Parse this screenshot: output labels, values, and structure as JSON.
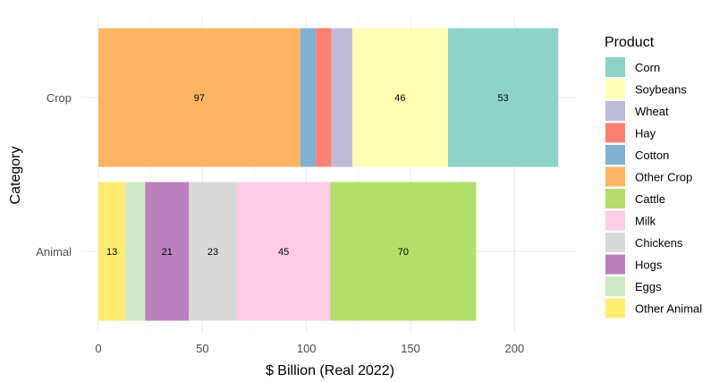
{
  "chart_data": {
    "type": "bar",
    "orientation": "horizontal",
    "stacked": true,
    "xlabel": "$ Billion (Real 2022)",
    "ylabel": "Category",
    "xlim": [
      0,
      220
    ],
    "xticks": [
      "0",
      "50",
      "100",
      "150",
      "200"
    ],
    "grid": true,
    "legend": {
      "title": "Product",
      "placement": "right"
    },
    "categories": [
      "Crop",
      "Animal"
    ],
    "series": [
      {
        "name": "Corn",
        "color": "#8dd3c7",
        "values": [
          53,
          null
        ]
      },
      {
        "name": "Soybeans",
        "color": "#ffffb3",
        "values": [
          46,
          null
        ]
      },
      {
        "name": "Wheat",
        "color": "#bebada",
        "values": [
          10,
          null
        ]
      },
      {
        "name": "Hay",
        "color": "#fb8072",
        "values": [
          7.5,
          null
        ]
      },
      {
        "name": "Cotton",
        "color": "#80b1d3",
        "values": [
          7.5,
          null
        ]
      },
      {
        "name": "Other Crop",
        "color": "#fdb462",
        "values": [
          97,
          null
        ]
      },
      {
        "name": "Cattle",
        "color": "#b3de69",
        "values": [
          null,
          70
        ]
      },
      {
        "name": "Milk",
        "color": "#fccde5",
        "values": [
          null,
          45
        ]
      },
      {
        "name": "Chickens",
        "color": "#d9d9d9",
        "values": [
          null,
          23
        ]
      },
      {
        "name": "Hogs",
        "color": "#bc80bd",
        "values": [
          null,
          21
        ]
      },
      {
        "name": "Eggs",
        "color": "#ccebc5",
        "values": [
          null,
          9.5
        ]
      },
      {
        "name": "Other Animal",
        "color": "#ffed6f",
        "values": [
          null,
          13
        ]
      }
    ],
    "data_labels": [
      {
        "category": "Crop",
        "series": "Other Crop",
        "text": "97"
      },
      {
        "category": "Crop",
        "series": "Soybeans",
        "text": "46"
      },
      {
        "category": "Crop",
        "series": "Corn",
        "text": "53"
      },
      {
        "category": "Animal",
        "series": "Other Animal",
        "text": "13"
      },
      {
        "category": "Animal",
        "series": "Hogs",
        "text": "21"
      },
      {
        "category": "Animal",
        "series": "Chickens",
        "text": "23"
      },
      {
        "category": "Animal",
        "series": "Milk",
        "text": "45"
      },
      {
        "category": "Animal",
        "series": "Cattle",
        "text": "70"
      }
    ]
  }
}
